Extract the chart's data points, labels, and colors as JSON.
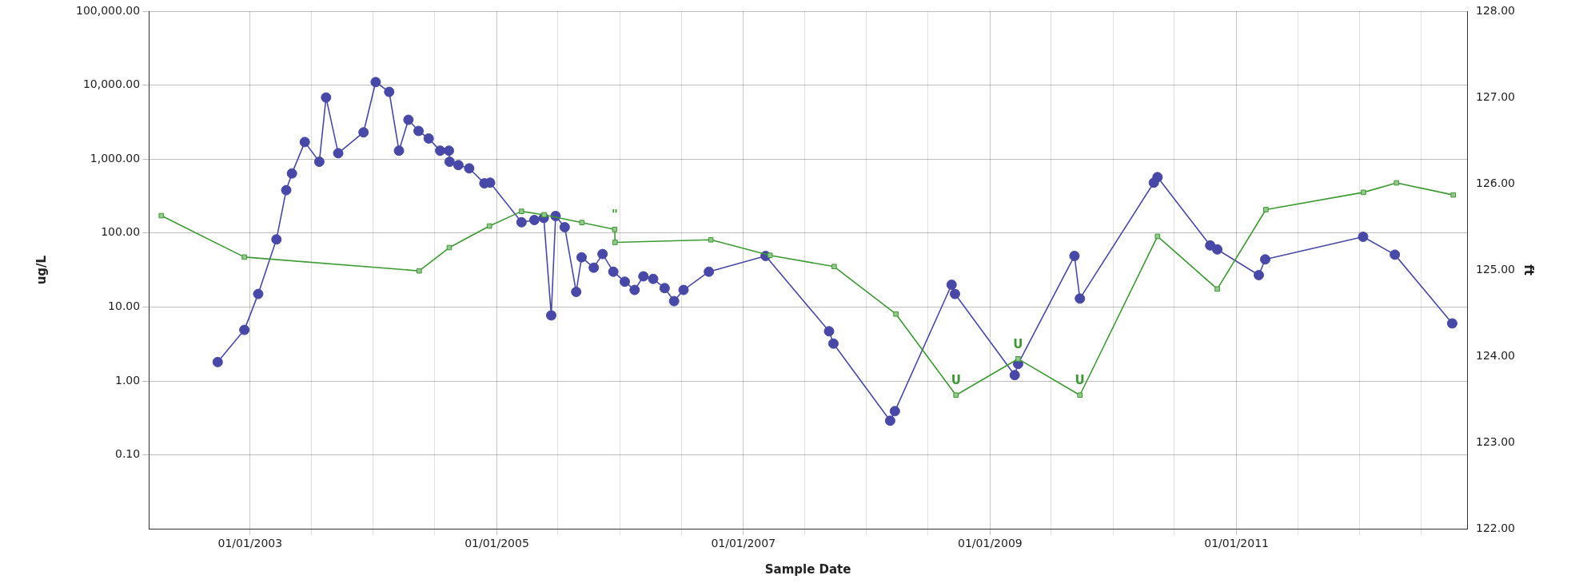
{
  "chart_data": {
    "type": "line",
    "xlabel": "Sample Date",
    "ylabel": "ug/L",
    "y2label": "ft",
    "xlim": [
      "2002-03-07",
      "2012-11-14"
    ],
    "xticks": [
      {
        "value": "2003-01-01",
        "label": "01/01/2003"
      },
      {
        "value": "2003-07-01",
        "label": null
      },
      {
        "value": "2004-01-01",
        "label": null
      },
      {
        "value": "2004-07-01",
        "label": null
      },
      {
        "value": "2005-01-01",
        "label": "01/01/2005"
      },
      {
        "value": "2005-07-01",
        "label": null
      },
      {
        "value": "2006-01-01",
        "label": null
      },
      {
        "value": "2006-07-01",
        "label": null
      },
      {
        "value": "2007-01-01",
        "label": "01/01/2007"
      },
      {
        "value": "2007-07-01",
        "label": null
      },
      {
        "value": "2008-01-01",
        "label": null
      },
      {
        "value": "2008-07-01",
        "label": null
      },
      {
        "value": "2009-01-01",
        "label": "01/01/2009"
      },
      {
        "value": "2009-07-01",
        "label": null
      },
      {
        "value": "2010-01-01",
        "label": null
      },
      {
        "value": "2010-07-01",
        "label": null
      },
      {
        "value": "2011-01-01",
        "label": "01/01/2011"
      },
      {
        "value": "2011-07-01",
        "label": null
      },
      {
        "value": "2012-01-01",
        "label": null
      },
      {
        "value": "2012-07-01",
        "label": null
      }
    ],
    "log": "y",
    "ylim": [
      0.01,
      100000
    ],
    "yticks": [
      {
        "value": 0.1,
        "label": "0.10"
      },
      {
        "value": 1,
        "label": "1.00"
      },
      {
        "value": 10,
        "label": "10.00"
      },
      {
        "value": 100,
        "label": "100.00"
      },
      {
        "value": 1000,
        "label": "1,000.00"
      },
      {
        "value": 10000,
        "label": "10,000.00"
      },
      {
        "value": 100000,
        "label": "100,000.00"
      }
    ],
    "y2lim": [
      122,
      128
    ],
    "y2ticks": [
      {
        "value": 122,
        "label": "122.00"
      },
      {
        "value": 123,
        "label": "123.00"
      },
      {
        "value": 124,
        "label": "124.00"
      },
      {
        "value": 125,
        "label": "125.00"
      },
      {
        "value": 126,
        "label": "126.00"
      },
      {
        "value": 127,
        "label": "127.00"
      },
      {
        "value": 128,
        "label": "128.00"
      }
    ],
    "grid": true,
    "legend": false,
    "line_style": "solid",
    "series": [
      {
        "color": "#4848a8",
        "marker": "circle",
        "x": [
          "2002-09-27",
          "2002-12-15",
          "2003-01-25",
          "2003-03-20",
          "2003-04-18",
          "2003-05-05",
          "2003-06-12",
          "2003-07-25",
          "2003-08-14",
          "2003-09-19",
          "2003-12-03",
          "2004-01-08",
          "2004-02-17",
          "2004-03-17",
          "2004-04-14",
          "2004-05-14",
          "2004-06-13",
          "2004-07-17",
          "2004-08-12",
          "2004-08-14",
          "2004-09-09",
          "2004-10-11",
          "2004-11-25",
          "2004-12-12",
          "2005-03-15",
          "2005-04-22",
          "2005-05-20",
          "2005-06-11",
          "2005-06-24",
          "2005-07-21",
          "2005-08-24",
          "2005-09-09",
          "2005-10-15",
          "2005-11-10",
          "2005-12-12",
          "2006-01-15",
          "2006-02-13",
          "2006-03-11",
          "2006-04-09",
          "2006-05-13",
          "2006-06-10",
          "2006-07-08",
          "2006-09-21",
          "2007-03-08",
          "2007-09-12",
          "2007-09-25",
          "2008-03-11",
          "2008-03-25",
          "2008-09-09",
          "2008-09-19",
          "2009-03-15",
          "2009-03-25",
          "2009-09-08",
          "2009-09-24",
          "2010-05-01",
          "2010-05-12",
          "2010-10-15",
          "2010-11-05",
          "2011-03-08",
          "2011-03-27",
          "2012-01-11",
          "2012-04-14",
          "2012-10-01"
        ],
        "values": [
          1.8,
          4.9,
          15,
          82,
          380,
          640,
          1700,
          920,
          6800,
          1200,
          2300,
          11000,
          8100,
          1300,
          3400,
          2400,
          1900,
          1300,
          1300,
          920,
          830,
          750,
          470,
          480,
          140,
          150,
          160,
          7.7,
          170,
          120,
          16,
          47,
          34,
          52,
          30,
          22,
          17,
          26,
          24,
          18,
          12,
          17,
          30,
          49,
          4.7,
          3.2,
          0.29,
          0.39,
          20,
          15,
          1.2,
          1.7,
          49,
          13,
          480,
          570,
          68,
          60,
          27,
          44,
          89,
          51,
          6
        ]
      },
      {
        "color": "#3c9a32",
        "marker": "square",
        "axis": "y2",
        "x": [
          "2002-04-13",
          "2002-12-15",
          "2004-05-16",
          "2004-08-13",
          "2004-12-10",
          "2005-03-15",
          "2005-05-21",
          "2005-09-10",
          "2005-12-16",
          "2005-12-17",
          "2006-09-27",
          "2007-03-21",
          "2007-09-27",
          "2008-03-28",
          "2008-09-22",
          "2009-03-25",
          "2009-09-24",
          "2010-05-12",
          "2010-11-05",
          "2011-03-29",
          "2012-01-12",
          "2012-04-19",
          "2012-10-04"
        ],
        "values": [
          125.63,
          125.15,
          124.99,
          125.26,
          125.51,
          125.68,
          125.64,
          125.55,
          125.47,
          125.32,
          125.35,
          125.17,
          125.04,
          124.49,
          123.55,
          123.97,
          123.55,
          125.39,
          124.78,
          125.7,
          125.9,
          126.01,
          125.87
        ],
        "value_labels": [
          null,
          null,
          null,
          null,
          null,
          null,
          null,
          null,
          "\"",
          null,
          null,
          null,
          null,
          null,
          "U",
          "U",
          "U",
          null,
          null,
          null,
          null,
          null,
          null
        ]
      }
    ]
  }
}
